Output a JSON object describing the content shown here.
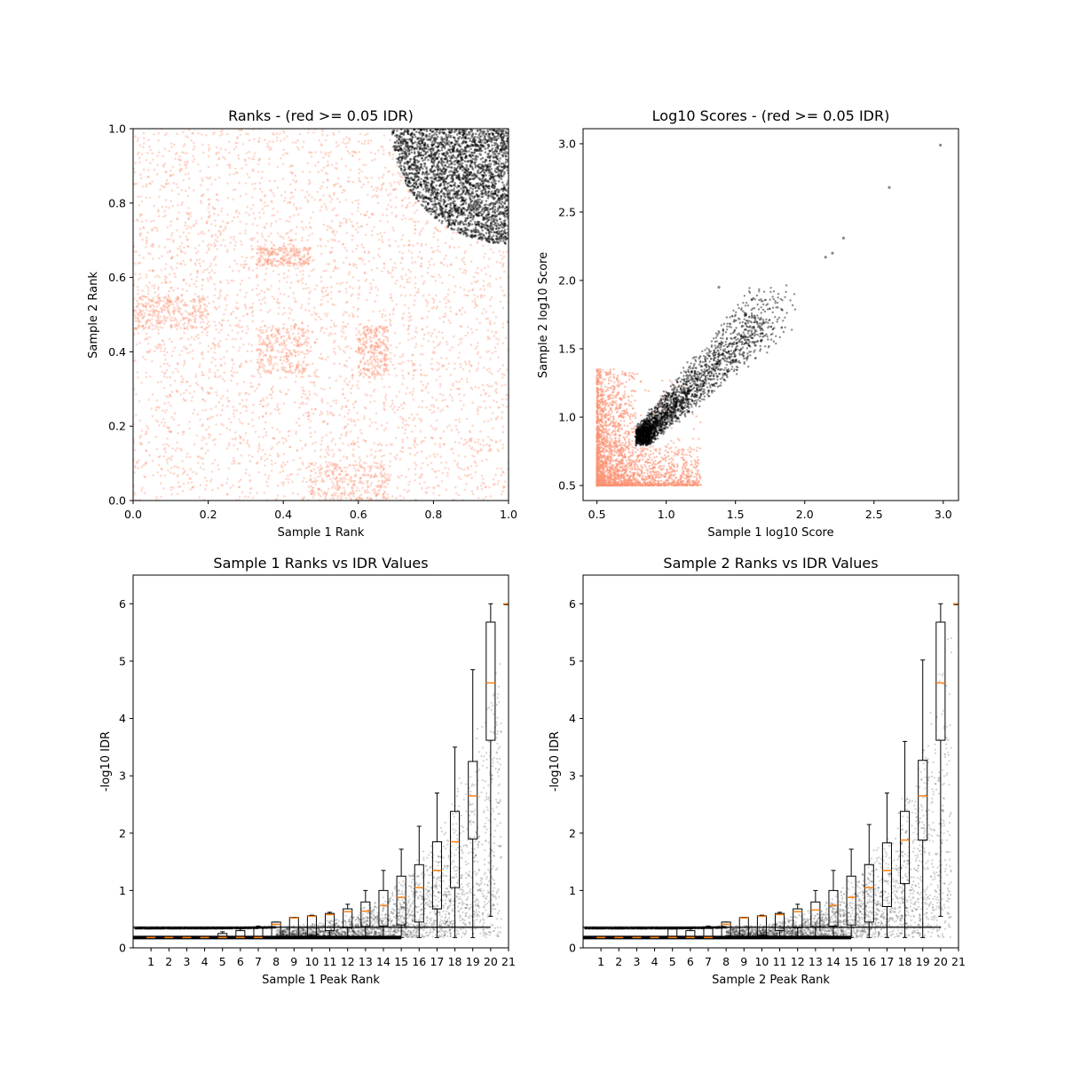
{
  "colors": {
    "below": "#fc9272",
    "above": "#000000",
    "median": "#ff7f0e",
    "frame": "#000000"
  },
  "chart_data": [
    {
      "type": "scatter",
      "title": "Ranks - (red >= 0.05 IDR)",
      "xlabel": "Sample 1 Rank",
      "ylabel": "Sample 2 Rank",
      "xlim": [
        0,
        1
      ],
      "ylim": [
        0,
        1
      ],
      "xticks": [
        0.0,
        0.2,
        0.4,
        0.6,
        0.8,
        1.0
      ],
      "yticks": [
        0.0,
        0.2,
        0.4,
        0.6,
        0.8,
        1.0
      ],
      "tick_labels_x": [
        "0.0",
        "0.2",
        "0.4",
        "0.6",
        "0.8",
        "1.0"
      ],
      "tick_labels_y": [
        "0.0",
        "0.2",
        "0.4",
        "0.6",
        "0.8",
        "1.0"
      ],
      "series": [
        {
          "color": "#fc9272",
          "region": "all ranks",
          "x_range": [
            0,
            1
          ],
          "y_range": [
            0,
            1
          ]
        },
        {
          "color": "#000000",
          "region": "upper-right corner",
          "x_range": [
            0.69,
            1.0
          ],
          "y_range": [
            0.69,
            1.0
          ]
        }
      ]
    },
    {
      "type": "scatter",
      "title": "Log10 Scores - (red >= 0.05 IDR)",
      "xlabel": "Sample 1 log10 Score",
      "ylabel": "Sample 2 log10 Score",
      "xlim": [
        0.4,
        3.11
      ],
      "ylim": [
        0.39,
        3.11
      ],
      "xticks": [
        0.5,
        1.0,
        1.5,
        2.0,
        2.5,
        3.0
      ],
      "yticks": [
        0.5,
        1.0,
        1.5,
        2.0,
        2.5,
        3.0
      ],
      "tick_labels_x": [
        "0.5",
        "1.0",
        "1.5",
        "2.0",
        "2.5",
        "3.0"
      ],
      "tick_labels_y": [
        "0.5",
        "1.0",
        "1.5",
        "2.0",
        "2.5",
        "3.0"
      ],
      "series": [
        {
          "color": "#fc9272",
          "x_range": [
            0.5,
            1.25
          ],
          "y_range": [
            0.5,
            1.35
          ]
        },
        {
          "color": "#000000",
          "x_range": [
            0.78,
            2.98
          ],
          "y_range": [
            0.77,
            2.99
          ],
          "outliers": [
            [
              2.98,
              2.99
            ],
            [
              2.61,
              2.68
            ],
            [
              2.28,
              2.31
            ],
            [
              2.2,
              2.2
            ],
            [
              2.15,
              2.17
            ],
            [
              1.38,
              1.95
            ]
          ]
        }
      ]
    },
    {
      "type": "box",
      "title": "Sample 1 Ranks vs IDR Values",
      "xlabel": "Sample 1 Peak Rank",
      "ylabel": "-log10 IDR",
      "xlim": [
        0,
        21
      ],
      "ylim": [
        0,
        6.5
      ],
      "categories": [
        "1",
        "2",
        "3",
        "4",
        "5",
        "6",
        "7",
        "8",
        "9",
        "10",
        "11",
        "12",
        "13",
        "14",
        "15",
        "16",
        "17",
        "18",
        "19",
        "20",
        "21"
      ],
      "yticks": [
        0,
        1,
        2,
        3,
        4,
        5,
        6
      ],
      "tick_labels_y": [
        "0",
        "1",
        "2",
        "3",
        "4",
        "5",
        "6"
      ],
      "boxes": [
        {
          "q1": 0.18,
          "median": 0.18,
          "q3": 0.18,
          "whislo": 0.18,
          "whishi": 0.18
        },
        {
          "q1": 0.18,
          "median": 0.18,
          "q3": 0.18,
          "whislo": 0.18,
          "whishi": 0.18
        },
        {
          "q1": 0.18,
          "median": 0.18,
          "q3": 0.18,
          "whislo": 0.18,
          "whishi": 0.18
        },
        {
          "q1": 0.18,
          "median": 0.18,
          "q3": 0.2,
          "whislo": 0.18,
          "whishi": 0.2
        },
        {
          "q1": 0.18,
          "median": 0.18,
          "q3": 0.25,
          "whislo": 0.18,
          "whishi": 0.28
        },
        {
          "q1": 0.18,
          "median": 0.18,
          "q3": 0.3,
          "whislo": 0.18,
          "whishi": 0.33
        },
        {
          "q1": 0.18,
          "median": 0.18,
          "q3": 0.35,
          "whislo": 0.18,
          "whishi": 0.38
        },
        {
          "q1": 0.19,
          "median": 0.41,
          "q3": 0.45,
          "whislo": 0.18,
          "whishi": 0.45
        },
        {
          "q1": 0.2,
          "median": 0.52,
          "q3": 0.53,
          "whislo": 0.18,
          "whishi": 0.53
        },
        {
          "q1": 0.22,
          "median": 0.55,
          "q3": 0.56,
          "whislo": 0.18,
          "whishi": 0.57
        },
        {
          "q1": 0.3,
          "median": 0.58,
          "q3": 0.6,
          "whislo": 0.18,
          "whishi": 0.62
        },
        {
          "q1": 0.35,
          "median": 0.63,
          "q3": 0.68,
          "whislo": 0.18,
          "whishi": 0.76
        },
        {
          "q1": 0.37,
          "median": 0.64,
          "q3": 0.8,
          "whislo": 0.18,
          "whishi": 1.0
        },
        {
          "q1": 0.38,
          "median": 0.74,
          "q3": 1.0,
          "whislo": 0.18,
          "whishi": 1.35
        },
        {
          "q1": 0.4,
          "median": 0.88,
          "q3": 1.25,
          "whislo": 0.18,
          "whishi": 1.72
        },
        {
          "q1": 0.45,
          "median": 1.05,
          "q3": 1.45,
          "whislo": 0.18,
          "whishi": 2.12
        },
        {
          "q1": 0.68,
          "median": 1.35,
          "q3": 1.85,
          "whislo": 0.18,
          "whishi": 2.7
        },
        {
          "q1": 1.05,
          "median": 1.85,
          "q3": 2.38,
          "whislo": 0.18,
          "whishi": 3.5
        },
        {
          "q1": 1.9,
          "median": 2.65,
          "q3": 3.25,
          "whislo": 0.18,
          "whishi": 4.85
        },
        {
          "q1": 3.62,
          "median": 4.62,
          "q3": 5.68,
          "whislo": 0.55,
          "whishi": 6.0
        },
        {
          "q1": 6.0,
          "median": 6.0,
          "q3": 6.0,
          "whislo": 6.0,
          "whishi": 6.0
        }
      ]
    },
    {
      "type": "box",
      "title": "Sample 2 Ranks vs IDR Values",
      "xlabel": "Sample 2 Peak Rank",
      "ylabel": "-log10 IDR",
      "xlim": [
        0,
        21
      ],
      "ylim": [
        0,
        6.5
      ],
      "categories": [
        "1",
        "2",
        "3",
        "4",
        "5",
        "6",
        "7",
        "8",
        "9",
        "10",
        "11",
        "12",
        "13",
        "14",
        "15",
        "16",
        "17",
        "18",
        "19",
        "20",
        "21"
      ],
      "yticks": [
        0,
        1,
        2,
        3,
        4,
        5,
        6
      ],
      "tick_labels_y": [
        "0",
        "1",
        "2",
        "3",
        "4",
        "5",
        "6"
      ],
      "boxes": [
        {
          "q1": 0.18,
          "median": 0.18,
          "q3": 0.18,
          "whislo": 0.18,
          "whishi": 0.18
        },
        {
          "q1": 0.18,
          "median": 0.18,
          "q3": 0.18,
          "whislo": 0.18,
          "whishi": 0.18
        },
        {
          "q1": 0.18,
          "median": 0.18,
          "q3": 0.18,
          "whislo": 0.18,
          "whishi": 0.18
        },
        {
          "q1": 0.18,
          "median": 0.18,
          "q3": 0.2,
          "whislo": 0.18,
          "whishi": 0.2
        },
        {
          "q1": 0.18,
          "median": 0.18,
          "q3": 0.33,
          "whislo": 0.18,
          "whishi": 0.35
        },
        {
          "q1": 0.18,
          "median": 0.18,
          "q3": 0.3,
          "whislo": 0.18,
          "whishi": 0.33
        },
        {
          "q1": 0.18,
          "median": 0.18,
          "q3": 0.35,
          "whislo": 0.18,
          "whishi": 0.38
        },
        {
          "q1": 0.19,
          "median": 0.41,
          "q3": 0.45,
          "whislo": 0.18,
          "whishi": 0.45
        },
        {
          "q1": 0.2,
          "median": 0.52,
          "q3": 0.53,
          "whislo": 0.18,
          "whishi": 0.53
        },
        {
          "q1": 0.22,
          "median": 0.55,
          "q3": 0.56,
          "whislo": 0.18,
          "whishi": 0.57
        },
        {
          "q1": 0.3,
          "median": 0.58,
          "q3": 0.6,
          "whislo": 0.18,
          "whishi": 0.62
        },
        {
          "q1": 0.35,
          "median": 0.63,
          "q3": 0.68,
          "whislo": 0.18,
          "whishi": 0.76
        },
        {
          "q1": 0.37,
          "median": 0.66,
          "q3": 0.8,
          "whislo": 0.18,
          "whishi": 1.0
        },
        {
          "q1": 0.38,
          "median": 0.74,
          "q3": 1.0,
          "whislo": 0.18,
          "whishi": 1.35
        },
        {
          "q1": 0.4,
          "median": 0.88,
          "q3": 1.25,
          "whislo": 0.18,
          "whishi": 1.72
        },
        {
          "q1": 0.45,
          "median": 1.05,
          "q3": 1.45,
          "whislo": 0.18,
          "whishi": 2.15
        },
        {
          "q1": 0.72,
          "median": 1.35,
          "q3": 1.83,
          "whislo": 0.18,
          "whishi": 2.7
        },
        {
          "q1": 1.12,
          "median": 1.88,
          "q3": 2.38,
          "whislo": 0.18,
          "whishi": 3.6
        },
        {
          "q1": 1.88,
          "median": 2.65,
          "q3": 3.27,
          "whislo": 0.18,
          "whishi": 5.02
        },
        {
          "q1": 3.62,
          "median": 4.62,
          "q3": 5.68,
          "whislo": 0.55,
          "whishi": 6.0
        },
        {
          "q1": 6.0,
          "median": 6.0,
          "q3": 6.0,
          "whislo": 6.0,
          "whishi": 6.0
        }
      ]
    }
  ]
}
